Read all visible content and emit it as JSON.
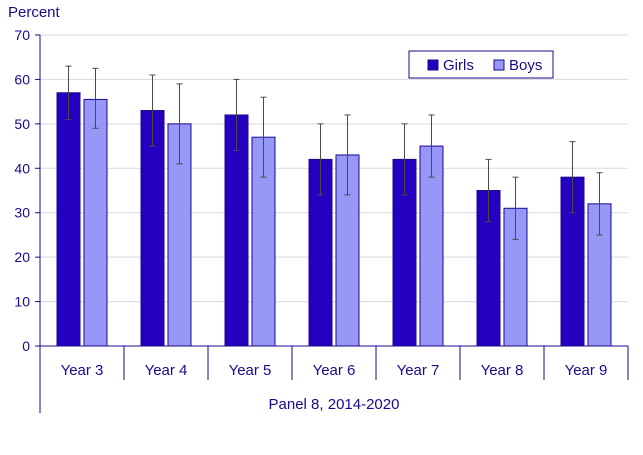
{
  "chart_data": {
    "type": "bar",
    "ylabel": "Percent",
    "ylim": [
      0,
      70
    ],
    "yticks": [
      0,
      10,
      20,
      30,
      40,
      50,
      60,
      70
    ],
    "categories": [
      "Year 3",
      "Year 4",
      "Year 5",
      "Year 6",
      "Year 7",
      "Year 8",
      "Year 9"
    ],
    "group_label": "Panel 8, 2014-2020",
    "grid": true,
    "legend_position": "top-right",
    "series": [
      {
        "name": "Girls",
        "color": "#2600c0",
        "values": [
          57,
          53,
          52,
          42,
          42,
          35,
          38
        ],
        "error_low": [
          51,
          45,
          44,
          34,
          34,
          28,
          30
        ],
        "error_high": [
          63,
          61,
          60,
          50,
          50,
          42,
          46
        ]
      },
      {
        "name": "Boys",
        "color": "#9797f7",
        "values": [
          55.5,
          50,
          47,
          43,
          45,
          31,
          32
        ],
        "error_low": [
          49,
          41,
          38,
          34,
          38,
          24,
          25
        ],
        "error_high": [
          62.5,
          59,
          56,
          52,
          52,
          38,
          39
        ]
      }
    ],
    "colors": {
      "text": "#1a0a8c",
      "axis": "#1a0a8c",
      "grid": "#d9d9d9",
      "bar_stroke": "#1a0a8c",
      "error_bar": "#4a4a4a"
    }
  }
}
